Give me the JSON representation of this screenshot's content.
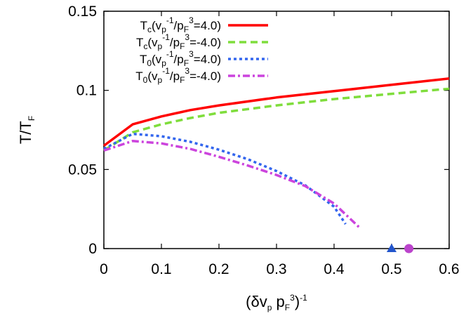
{
  "chart_data": {
    "type": "line",
    "xlabel": {
      "base": "(δv",
      "sub1": "p",
      "mid": " p",
      "sub2": "F",
      "sup1": "3",
      "close": ")",
      "sup2": "-1"
    },
    "ylabel": {
      "base": "T/T",
      "sub": "F"
    },
    "xlim": [
      0,
      0.6
    ],
    "ylim": [
      0,
      0.15
    ],
    "xticks": [
      "0",
      "0.1",
      "0.2",
      "0.3",
      "0.4",
      "0.5",
      "0.6"
    ],
    "yticks": [
      "0",
      "0.05",
      "0.1",
      "0.15"
    ],
    "grid": false,
    "legend_position": "top-left",
    "series": [
      {
        "name": "Tc(vp-1/pF3=4.0)",
        "legend": {
          "a": "T",
          "as": "c",
          "b": "(v",
          "bs": "p",
          "bsup": "-1",
          "c": "/p",
          "cs": "F",
          "csup": "3",
          "d": "=4.0)"
        },
        "color": "#ff0000",
        "style": "solid",
        "x": [
          0,
          0.05,
          0.1,
          0.15,
          0.2,
          0.3,
          0.4,
          0.5,
          0.6
        ],
        "y": [
          0.065,
          0.0785,
          0.0835,
          0.0875,
          0.0905,
          0.0955,
          0.0995,
          0.1035,
          0.1075
        ]
      },
      {
        "name": "Tc(vp-1/pF3=-4.0)",
        "legend": {
          "a": "T",
          "as": "c",
          "b": "(v",
          "bs": "p",
          "bsup": "-1",
          "c": "/p",
          "cs": "F",
          "csup": "3",
          "d": "=-4.0)"
        },
        "color": "#7fdd3c",
        "style": "dashed",
        "x": [
          0,
          0.05,
          0.1,
          0.15,
          0.2,
          0.3,
          0.4,
          0.5,
          0.6
        ],
        "y": [
          0.062,
          0.0735,
          0.0785,
          0.0825,
          0.0858,
          0.0905,
          0.0945,
          0.0978,
          0.101
        ]
      },
      {
        "name": "T0(vp-1/pF3=4.0)",
        "legend": {
          "a": "T",
          "as": "0",
          "b": "(v",
          "bs": "p",
          "bsup": "-1",
          "c": "/p",
          "cs": "F",
          "csup": "3",
          "d": "=4.0)"
        },
        "color": "#3366ee",
        "style": "dotted",
        "x": [
          0,
          0.05,
          0.1,
          0.15,
          0.2,
          0.25,
          0.3,
          0.35,
          0.4,
          0.42
        ],
        "y": [
          0.063,
          0.0725,
          0.071,
          0.0675,
          0.0625,
          0.0565,
          0.049,
          0.04,
          0.0265,
          0.0155
        ]
      },
      {
        "name": "T0(vp-1/pF3=-4.0)",
        "legend": {
          "a": "T",
          "as": "0",
          "b": "(v",
          "bs": "p",
          "bsup": "-1",
          "c": "/p",
          "cs": "F",
          "csup": "3",
          "d": "=-4.0)"
        },
        "color": "#cc44dd",
        "style": "dashdot",
        "x": [
          0,
          0.05,
          0.1,
          0.15,
          0.2,
          0.25,
          0.3,
          0.35,
          0.4,
          0.445
        ],
        "y": [
          0.062,
          0.068,
          0.0665,
          0.063,
          0.058,
          0.0525,
          0.0465,
          0.0395,
          0.0285,
          0.013
        ]
      }
    ],
    "markers": [
      {
        "shape": "triangle",
        "x": 0.5,
        "y": 0,
        "color": "#2255cc"
      },
      {
        "shape": "circle",
        "x": 0.53,
        "y": 0,
        "color": "#bb44cc"
      }
    ]
  }
}
